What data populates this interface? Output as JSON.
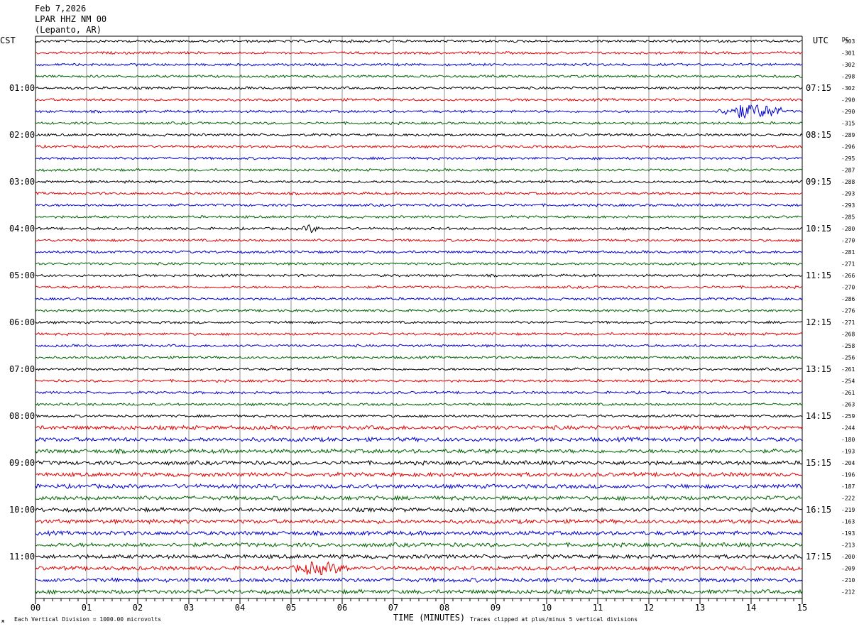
{
  "header": {
    "date": "Feb 7,2026",
    "station": "LPAR HHZ NM 00",
    "location": "(Lepanto, AR)"
  },
  "axis_titles": {
    "left": "CST",
    "right": "UTC",
    "dc": "DC"
  },
  "footer": {
    "scale_note": "Each Vertical Division = 1000.00 microvolts",
    "clip_note": "Traces clipped at plus/minus 5 vertical divisions",
    "corner_mark": "ж"
  },
  "colors": {
    "trace_cycle": [
      "#000000",
      "#e00000",
      "#0000d0",
      "#006400"
    ],
    "grid": "#000000",
    "background": "#ffffff"
  },
  "chart_data": {
    "type": "line",
    "title": "",
    "xlabel": "TIME (MINUTES)",
    "ylabel": "",
    "xlim": [
      0,
      15
    ],
    "x_ticks": [
      "00",
      "01",
      "02",
      "03",
      "04",
      "05",
      "06",
      "07",
      "08",
      "09",
      "10",
      "11",
      "12",
      "13",
      "14",
      "15"
    ],
    "grid": true,
    "row_count": 48,
    "left_hour_labels": [
      "01:00",
      "02:00",
      "03:00",
      "04:00",
      "05:00",
      "06:00",
      "07:00",
      "08:00",
      "09:00",
      "10:00",
      "11:00"
    ],
    "right_utc_labels": [
      "07:15",
      "08:15",
      "09:15",
      "10:15",
      "11:15",
      "12:15",
      "13:15",
      "14:15",
      "15:15",
      "16:15",
      "17:15"
    ],
    "dc_offsets": [
      -303,
      -301,
      -302,
      -298,
      -302,
      -290,
      -290,
      -315,
      -289,
      -296,
      -295,
      -287,
      -288,
      -293,
      -293,
      -285,
      -280,
      -270,
      -281,
      -271,
      -266,
      -270,
      -286,
      -276,
      -271,
      -268,
      -258,
      -256,
      -261,
      -254,
      -261,
      -263,
      -259,
      -244,
      -180,
      -193,
      -204,
      -196,
      -187,
      -222,
      -219,
      -163,
      -193,
      -213,
      -200,
      -209,
      -210,
      -212
    ],
    "events": [
      {
        "row": 6,
        "start_minute": 13.3,
        "peak_minute": 13.9,
        "end_minute": 14.6,
        "strength": 8
      },
      {
        "row": 16,
        "start_minute": 5.2,
        "peak_minute": 5.35,
        "end_minute": 5.55,
        "strength": 3
      },
      {
        "row": 45,
        "start_minute": 5.0,
        "peak_minute": 5.4,
        "end_minute": 6.2,
        "strength": 3
      }
    ]
  }
}
